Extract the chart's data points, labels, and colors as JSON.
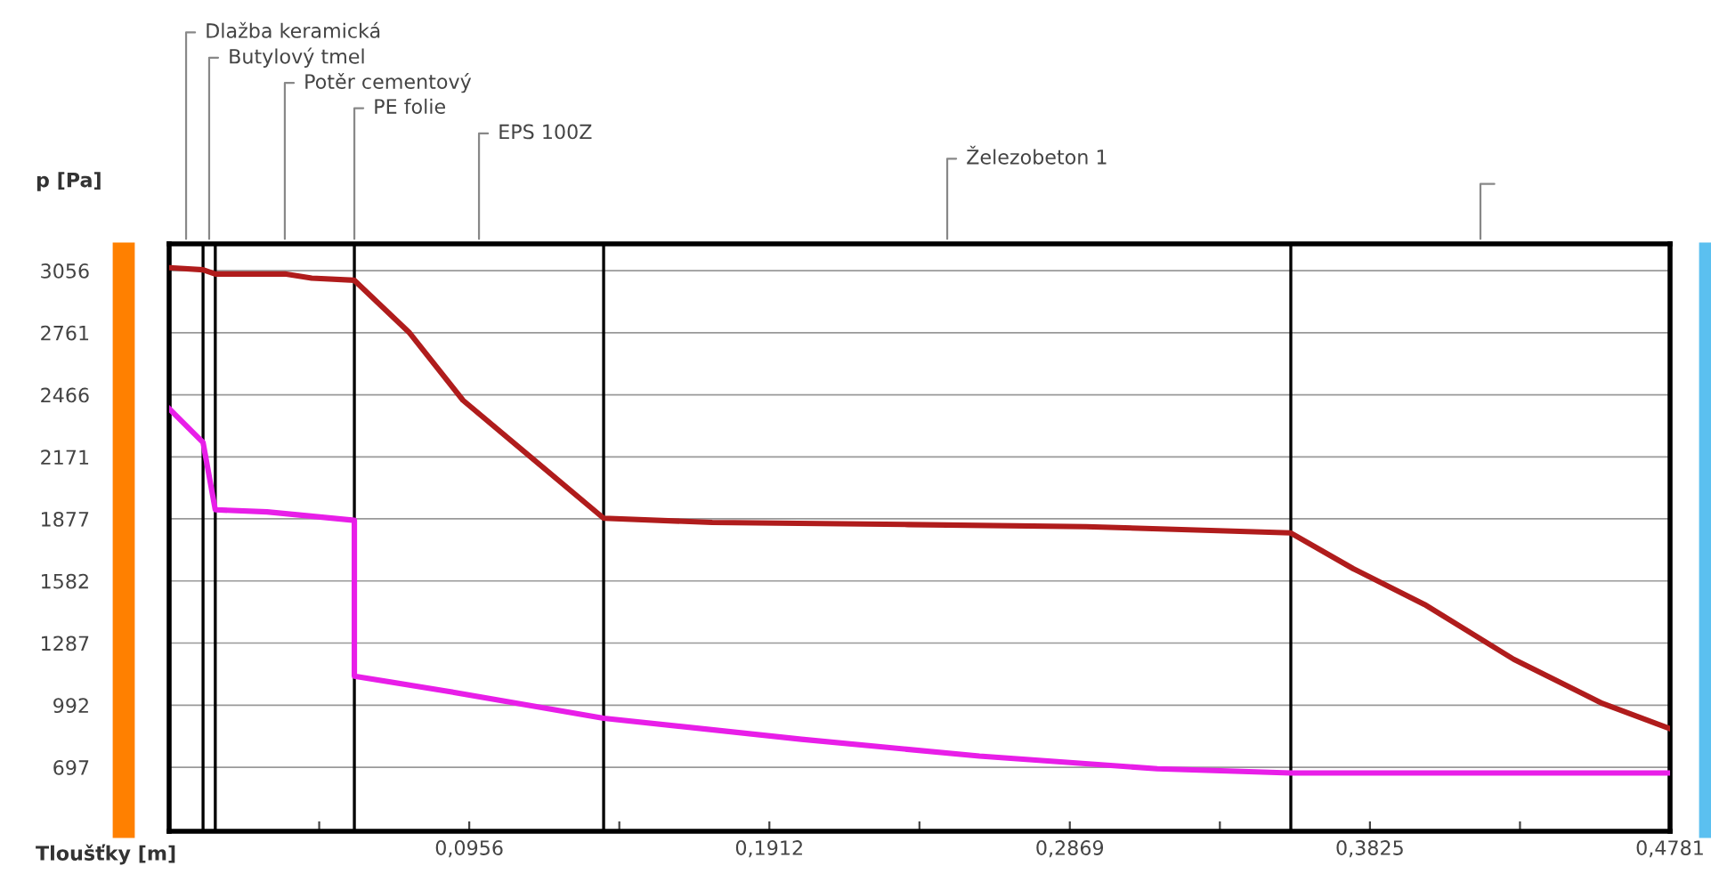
{
  "chart_data": {
    "type": "line",
    "xlabel": "Tloušťky [m]",
    "ylabel": "p [Pa]",
    "series": [
      {
        "color": "#b01c1c",
        "x": [
          0,
          0.0108,
          0.0147,
          0.0369,
          0.0454,
          0.059,
          0.0766,
          0.0936,
          0.1384,
          0.173,
          0.2354,
          0.2921,
          0.3573,
          0.3772,
          0.3999,
          0.4283,
          0.4566,
          0.4781
        ],
        "values": [
          3070,
          3060,
          3040,
          3040,
          3020,
          3010,
          2760,
          2440,
          1880,
          1860,
          1850,
          1840,
          1810,
          1640,
          1470,
          1210,
          1000,
          880
        ]
      },
      {
        "color": "#e81ee8",
        "x": [
          0,
          0.0108,
          0.0147,
          0.0312,
          0.059,
          0.059,
          0.0879,
          0.1384,
          0.2014,
          0.2581,
          0.3148,
          0.3573,
          0.4781
        ],
        "values": [
          2400,
          2240,
          1920,
          1910,
          1870,
          1130,
          1060,
          930,
          830,
          750,
          690,
          670,
          670
        ]
      }
    ],
    "ref_lines": [
      {
        "axis": "x",
        "value": 0.0108
      },
      {
        "axis": "x",
        "value": 0.0147
      },
      {
        "axis": "x",
        "value": 0.059
      },
      {
        "axis": "x",
        "value": 0.1384
      },
      {
        "axis": "x",
        "value": 0.3573
      }
    ],
    "annotations": [
      "Dlažba keramická",
      "Butylový tmel",
      "Potěr cementový",
      "PE folie",
      "EPS 100Z",
      "Železobeton 1"
    ],
    "xlim": [
      0,
      0.4781
    ],
    "ylim": [
      393,
      3183
    ],
    "xticks": [
      {
        "value": 0.0478,
        "label": null
      },
      {
        "value": 0.0956,
        "label": "0,0956"
      },
      {
        "value": 0.1434,
        "label": null
      },
      {
        "value": 0.1912,
        "label": "0,1912"
      },
      {
        "value": 0.239,
        "label": null
      },
      {
        "value": 0.2869,
        "label": "0,2869"
      },
      {
        "value": 0.3347,
        "label": null
      },
      {
        "value": 0.3825,
        "label": "0,3825"
      },
      {
        "value": 0.4303,
        "label": null
      },
      {
        "value": 0.4781,
        "label": "0,4781"
      }
    ],
    "yticks": [
      697,
      992,
      1287,
      1582,
      1877,
      2171,
      2466,
      2761,
      3056
    ],
    "grid": "y",
    "marker": "none",
    "line_style": "solid"
  }
}
